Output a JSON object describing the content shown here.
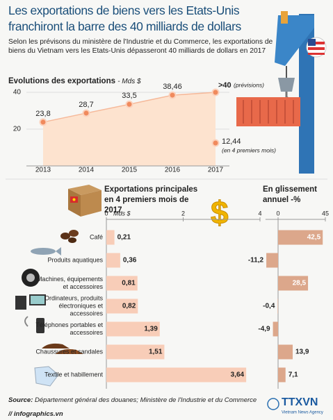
{
  "header": {
    "title": "Les exportations de biens vers les Etats-Unis franchiront la barre des 40 milliards de dollars",
    "subtitle": "Selon les prévisons du ministère de l'Industrie et du Commerce, les exportations de biens du Vietnam vers les Etats-Unis dépasseront 40 milliards de dollars en 2017"
  },
  "chart_data": [
    {
      "type": "area",
      "title": "Evolutions des exportations",
      "unit": "- Mds $",
      "categories": [
        "2013",
        "2014",
        "2015",
        "2016",
        "2017"
      ],
      "values": [
        23.8,
        28.7,
        33.5,
        38.46,
        40
      ],
      "value_labels": [
        "23,8",
        "28,7",
        "33,5",
        "38,46",
        ">40"
      ],
      "annotation": "(prévisions)",
      "extra_point": {
        "category": "2017",
        "value": 12.44,
        "label": "12,44",
        "note": "(en 4 premiers mois)"
      },
      "ylim": [
        0,
        40
      ],
      "yticks": [
        20,
        40
      ],
      "color": "#f08a5d",
      "fill": "#fde3cf",
      "grid": true
    },
    {
      "type": "hbar",
      "title": "Exportations principales en 4 premiers mois de 2017",
      "unit": "Mds $",
      "categories": [
        "Café",
        "Produits aquatiques",
        "Machines, équipements et accessoires",
        "Ordinateurs, produits électroniques et accessoires",
        "Téléphones portables et accessoires",
        "Chaussures et sandales",
        "Textile et habillement"
      ],
      "values": [
        0.21,
        0.36,
        0.81,
        0.82,
        1.39,
        1.51,
        3.64
      ],
      "value_labels": [
        "0,21",
        "0,36",
        "0,81",
        "0,82",
        "1,39",
        "1,51",
        "3,64"
      ],
      "xlim": [
        0,
        4
      ],
      "xticks": [
        0,
        2,
        4
      ],
      "color": "#f8cdb8"
    },
    {
      "type": "hbar",
      "title": "En glissement annuel -%",
      "values": [
        42.5,
        -11.2,
        28.5,
        -0.4,
        -4.9,
        13.9,
        7.1
      ],
      "value_labels": [
        "42,5",
        "-11,2",
        "28,5",
        "-0,4",
        "-4,9",
        "13,9",
        "7,1"
      ],
      "xlim": [
        -12,
        45
      ],
      "xticks": [
        0,
        45
      ],
      "color": "#dca78b"
    }
  ],
  "footer": {
    "source_label": "Source:",
    "source": "Département général des douanes; Ministère de l'Industrie et du Commerce",
    "site": "// infographics.vn",
    "logo": "TTXVN",
    "logo_sub": "Vietnam News Agency"
  }
}
